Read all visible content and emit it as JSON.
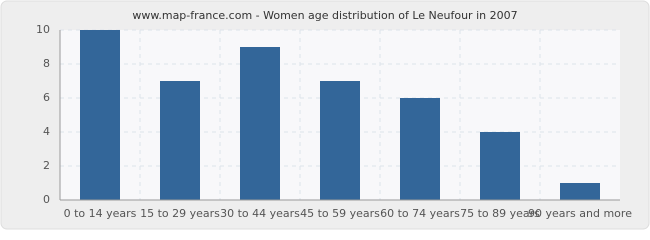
{
  "chart_data": {
    "type": "bar",
    "title": "www.map-france.com - Women age distribution of Le Neufour in 2007",
    "categories": [
      "0 to 14 years",
      "15 to 29 years",
      "30 to 44 years",
      "45 to 59 years",
      "60 to 74 years",
      "75 to 89 years",
      "90 years and more"
    ],
    "values": [
      10,
      7,
      9,
      7,
      6,
      4,
      1
    ],
    "color": "#336699",
    "ylim": [
      0,
      10
    ],
    "yticks": [
      0,
      2,
      4,
      6,
      8,
      10
    ],
    "grid": true
  }
}
